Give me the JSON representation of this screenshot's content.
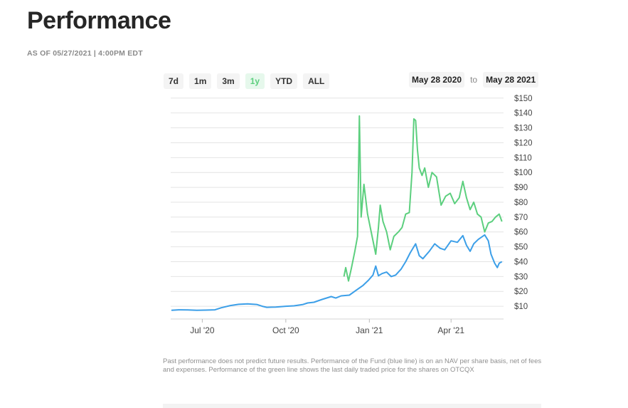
{
  "page": {
    "title": "Performance",
    "as_of": "AS OF 05/27/2021 | 4:00PM EDT",
    "disclaimer": "Past performance does not predict future results. Performance of the Fund (blue line) is on an NAV per share basis, net of fees and expenses. Performance of the green line shows the last daily traded price for the shares on OTCQX"
  },
  "controls": {
    "ranges": [
      "7d",
      "1m",
      "3m",
      "1y",
      "YTD",
      "ALL"
    ],
    "active_range": "1y",
    "date_from": "May 28 2020",
    "date_separator": "to",
    "date_to": "May 28 2021"
  },
  "colors": {
    "nav": "#3c9fe8",
    "market": "#5ccf7e",
    "grid": "#e4e4e4",
    "active_bg": "#e6f8ec"
  },
  "chart_data": {
    "type": "line",
    "title": "",
    "xlabel": "",
    "ylabel": "",
    "ylim": [
      0,
      150
    ],
    "xlim": [
      "2020-05-28",
      "2021-05-28"
    ],
    "grid": true,
    "y_axis_side": "right",
    "y_ticks": [
      10,
      20,
      30,
      40,
      50,
      60,
      70,
      80,
      90,
      100,
      110,
      120,
      130,
      140,
      150
    ],
    "y_tick_labels": [
      "$10",
      "$20",
      "$30",
      "$40",
      "$50",
      "$60",
      "$70",
      "$80",
      "$90",
      "$100",
      "$110",
      "$120",
      "$130",
      "$140",
      "$150"
    ],
    "x_ticks": [
      "2020-07-01",
      "2020-10-01",
      "2021-01-01",
      "2021-04-01"
    ],
    "x_tick_labels": [
      "Jul '20",
      "Oct '20",
      "Jan '21",
      "Apr '21"
    ],
    "series": [
      {
        "color": "#3c9fe8",
        "points": [
          [
            "2020-05-28",
            7.3
          ],
          [
            "2020-06-05",
            7.6
          ],
          [
            "2020-06-15",
            7.5
          ],
          [
            "2020-06-25",
            7.3
          ],
          [
            "2020-07-05",
            7.4
          ],
          [
            "2020-07-15",
            7.6
          ],
          [
            "2020-07-22",
            9.0
          ],
          [
            "2020-08-01",
            10.5
          ],
          [
            "2020-08-10",
            11.3
          ],
          [
            "2020-08-20",
            11.6
          ],
          [
            "2020-08-30",
            11.2
          ],
          [
            "2020-09-05",
            10.0
          ],
          [
            "2020-09-10",
            9.3
          ],
          [
            "2020-09-20",
            9.5
          ],
          [
            "2020-10-01",
            10.0
          ],
          [
            "2020-10-10",
            10.3
          ],
          [
            "2020-10-20",
            11.2
          ],
          [
            "2020-10-25",
            12.2
          ],
          [
            "2020-11-01",
            12.7
          ],
          [
            "2020-11-10",
            14.6
          ],
          [
            "2020-11-20",
            16.5
          ],
          [
            "2020-11-25",
            15.5
          ],
          [
            "2020-12-01",
            17.0
          ],
          [
            "2020-12-10",
            17.5
          ],
          [
            "2020-12-18",
            21.0
          ],
          [
            "2020-12-25",
            24.0
          ],
          [
            "2020-12-31",
            27.5
          ],
          [
            "2021-01-05",
            31.0
          ],
          [
            "2021-01-08",
            37.0
          ],
          [
            "2021-01-11",
            30.5
          ],
          [
            "2021-01-15",
            32.0
          ],
          [
            "2021-01-20",
            33.0
          ],
          [
            "2021-01-25",
            30.0
          ],
          [
            "2021-01-30",
            31.0
          ],
          [
            "2021-02-05",
            35.0
          ],
          [
            "2021-02-10",
            40.0
          ],
          [
            "2021-02-15",
            46.0
          ],
          [
            "2021-02-21",
            52.0
          ],
          [
            "2021-02-25",
            44.0
          ],
          [
            "2021-03-01",
            42.0
          ],
          [
            "2021-03-08",
            47.0
          ],
          [
            "2021-03-14",
            52.0
          ],
          [
            "2021-03-20",
            49.0
          ],
          [
            "2021-03-25",
            48.0
          ],
          [
            "2021-04-01",
            54.0
          ],
          [
            "2021-04-08",
            53.0
          ],
          [
            "2021-04-14",
            57.5
          ],
          [
            "2021-04-18",
            51.0
          ],
          [
            "2021-04-22",
            47.0
          ],
          [
            "2021-04-26",
            52.0
          ],
          [
            "2021-05-01",
            55.0
          ],
          [
            "2021-05-08",
            58.0
          ],
          [
            "2021-05-12",
            54.0
          ],
          [
            "2021-05-15",
            45.0
          ],
          [
            "2021-05-19",
            39.0
          ],
          [
            "2021-05-22",
            36.0
          ],
          [
            "2021-05-24",
            39.0
          ],
          [
            "2021-05-27",
            40.0
          ]
        ]
      },
      {
        "color": "#5ccf7e",
        "points": [
          [
            "2020-12-04",
            30.0
          ],
          [
            "2020-12-06",
            36.0
          ],
          [
            "2020-12-09",
            27.0
          ],
          [
            "2020-12-12",
            35.0
          ],
          [
            "2020-12-16",
            47.0
          ],
          [
            "2020-12-19",
            57.0
          ],
          [
            "2020-12-21",
            138.0
          ],
          [
            "2020-12-23",
            70.0
          ],
          [
            "2020-12-26",
            92.0
          ],
          [
            "2020-12-30",
            72.0
          ],
          [
            "2021-01-04",
            57.0
          ],
          [
            "2021-01-08",
            45.0
          ],
          [
            "2021-01-11",
            63.0
          ],
          [
            "2021-01-13",
            78.0
          ],
          [
            "2021-01-16",
            67.0
          ],
          [
            "2021-01-20",
            60.0
          ],
          [
            "2021-01-24",
            48.0
          ],
          [
            "2021-01-28",
            57.0
          ],
          [
            "2021-02-02",
            60.0
          ],
          [
            "2021-02-06",
            63.0
          ],
          [
            "2021-02-10",
            72.0
          ],
          [
            "2021-02-14",
            73.0
          ],
          [
            "2021-02-17",
            100.0
          ],
          [
            "2021-02-19",
            136.0
          ],
          [
            "2021-02-21",
            135.0
          ],
          [
            "2021-02-23",
            115.0
          ],
          [
            "2021-02-25",
            103.0
          ],
          [
            "2021-02-28",
            98.0
          ],
          [
            "2021-03-03",
            103.0
          ],
          [
            "2021-03-07",
            90.0
          ],
          [
            "2021-03-11",
            100.0
          ],
          [
            "2021-03-16",
            97.0
          ],
          [
            "2021-03-21",
            78.0
          ],
          [
            "2021-03-26",
            84.0
          ],
          [
            "2021-03-31",
            86.0
          ],
          [
            "2021-04-05",
            79.0
          ],
          [
            "2021-04-10",
            83.0
          ],
          [
            "2021-04-14",
            94.0
          ],
          [
            "2021-04-18",
            83.0
          ],
          [
            "2021-04-22",
            75.0
          ],
          [
            "2021-04-26",
            80.0
          ],
          [
            "2021-04-30",
            72.0
          ],
          [
            "2021-05-04",
            70.0
          ],
          [
            "2021-05-08",
            60.0
          ],
          [
            "2021-05-12",
            66.0
          ],
          [
            "2021-05-16",
            67.0
          ],
          [
            "2021-05-20",
            70.0
          ],
          [
            "2021-05-24",
            72.0
          ],
          [
            "2021-05-27",
            67.0
          ]
        ]
      }
    ]
  }
}
